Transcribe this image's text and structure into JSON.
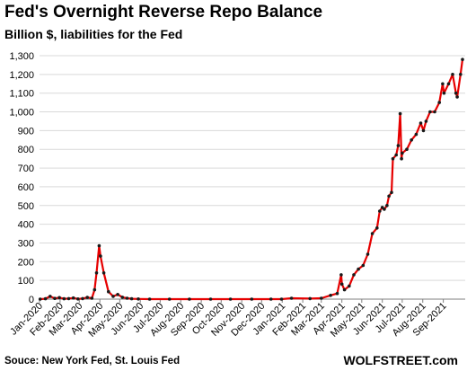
{
  "header": {
    "title": "Fed's Overnight Reverse Repo Balance",
    "subtitle": "Billion $, liabilities for the Fed"
  },
  "footer": {
    "source": "Souce: New York Fed, St. Louis Fed",
    "brand": "WOLFSTREET.com"
  },
  "colors": {
    "line": "#e60000",
    "marker": "#1a1a1a",
    "grid": "#d9d9d9"
  },
  "chart_data": {
    "type": "line",
    "title": "Fed's Overnight Reverse Repo Balance",
    "subtitle": "Billion $, liabilities for the Fed",
    "xlabel": "",
    "ylabel": "",
    "ylim": [
      0,
      1300
    ],
    "yticks": [
      "0",
      "100",
      "200",
      "300",
      "400",
      "500",
      "600",
      "700",
      "800",
      "900",
      "1,000",
      "1,100",
      "1,200",
      "1,300"
    ],
    "xticks": [
      "Jan-2020",
      "Feb-2020",
      "Mar-2020",
      "Apr-2020",
      "May-2020",
      "Jun-2020",
      "Jul-2020",
      "Aug-2020",
      "Sep-2020",
      "Oct-2020",
      "Nov-2020",
      "Dec-2020",
      "Jan-2021",
      "Feb-2021",
      "Mar-2021",
      "Apr-2021",
      "May-2021",
      "Jun-2021",
      "Jul-2021",
      "Aug-2021",
      "Sep-2021"
    ],
    "grid": true,
    "legend": "none",
    "series": [
      {
        "x": [
          "2020-01-02",
          "2020-01-10",
          "2020-01-17",
          "2020-01-24",
          "2020-01-31",
          "2020-02-07",
          "2020-02-14",
          "2020-02-21",
          "2020-02-28",
          "2020-03-06",
          "2020-03-13",
          "2020-03-20",
          "2020-03-24",
          "2020-03-27",
          "2020-03-31",
          "2020-04-02",
          "2020-04-07",
          "2020-04-14",
          "2020-04-21",
          "2020-04-28",
          "2020-05-05",
          "2020-05-12",
          "2020-05-19",
          "2020-05-29",
          "2020-06-15",
          "2020-07-15",
          "2020-08-14",
          "2020-09-15",
          "2020-10-15",
          "2020-11-16",
          "2020-12-15",
          "2020-12-31",
          "2021-01-15",
          "2021-02-12",
          "2021-03-01",
          "2021-03-15",
          "2021-03-25",
          "2021-03-31",
          "2021-04-01",
          "2021-04-05",
          "2021-04-12",
          "2021-04-19",
          "2021-04-26",
          "2021-05-03",
          "2021-05-10",
          "2021-05-17",
          "2021-05-24",
          "2021-05-28",
          "2021-06-01",
          "2021-06-04",
          "2021-06-08",
          "2021-06-11",
          "2021-06-15",
          "2021-06-17",
          "2021-06-22",
          "2021-06-25",
          "2021-06-28",
          "2021-06-30",
          "2021-07-01",
          "2021-07-08",
          "2021-07-15",
          "2021-07-22",
          "2021-07-29",
          "2021-08-02",
          "2021-08-06",
          "2021-08-12",
          "2021-08-19",
          "2021-08-26",
          "2021-08-31",
          "2021-09-02",
          "2021-09-09",
          "2021-09-15",
          "2021-09-20",
          "2021-09-22",
          "2021-09-27",
          "2021-09-30"
        ],
        "y": [
          0,
          2,
          15,
          4,
          8,
          2,
          3,
          6,
          1,
          3,
          9,
          5,
          50,
          140,
          285,
          230,
          140,
          40,
          15,
          25,
          10,
          5,
          2,
          1,
          0,
          0,
          0,
          0,
          0,
          0,
          0,
          0,
          5,
          3,
          5,
          20,
          30,
          130,
          80,
          50,
          70,
          130,
          160,
          180,
          240,
          350,
          380,
          470,
          490,
          480,
          500,
          550,
          570,
          750,
          770,
          820,
          990,
          750,
          780,
          800,
          850,
          880,
          940,
          900,
          950,
          1000,
          1000,
          1050,
          1150,
          1100,
          1150,
          1200,
          1100,
          1080,
          1200,
          1280
        ]
      }
    ]
  }
}
